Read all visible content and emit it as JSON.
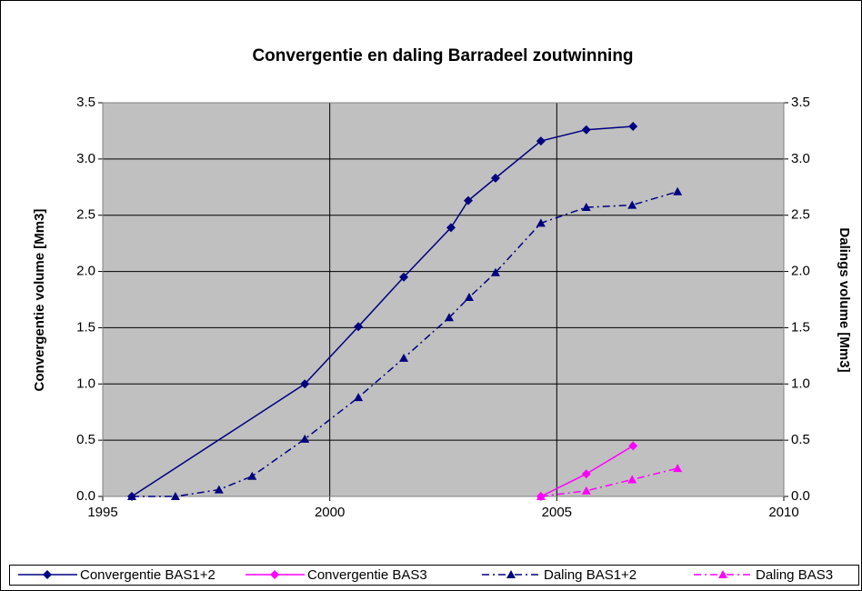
{
  "chart_data": {
    "type": "line",
    "title": "Convergentie en daling Barradeel zoutwinning",
    "ylabel": "Convergentie volume [Mm3]",
    "y2label": "Dalings volume [Mm3]",
    "xlim": [
      1995,
      2010
    ],
    "xticks": [
      1995,
      2000,
      2005,
      2010
    ],
    "ylim": [
      0,
      3.5
    ],
    "yticks": [
      {
        "value": 0,
        "label": "0.0"
      },
      0.5,
      {
        "value": 1,
        "label": "1.0"
      },
      1.5,
      {
        "value": 2,
        "label": "2.0"
      },
      2.5,
      {
        "value": 3,
        "label": "3.0"
      },
      3.5
    ],
    "y2lim": [
      0,
      3.5
    ],
    "y2ticks": [
      {
        "value": 0,
        "label": "0.0"
      },
      0.5,
      {
        "value": 1,
        "label": "1.0"
      },
      1.5,
      {
        "value": 2,
        "label": "2.0"
      },
      2.5,
      {
        "value": 3,
        "label": "3.0"
      },
      3.5
    ],
    "grid": true,
    "plot_background": "#c0c0c0",
    "legend": "bottom",
    "series": [
      {
        "name": "Convergentie BAS1+2",
        "color": "#000080",
        "marker": "diamond",
        "dash": "solid",
        "axis": "y",
        "x": [
          1995.64,
          1999.45,
          2000.63,
          2001.63,
          2002.67,
          2003.05,
          2003.65,
          2004.65,
          2005.65,
          2006.68
        ],
        "values": [
          0,
          1.0,
          1.51,
          1.95,
          2.39,
          2.63,
          2.83,
          3.16,
          3.26,
          3.29
        ]
      },
      {
        "name": "Convergentie BAS3",
        "color": "#ff00ff",
        "marker": "diamond",
        "dash": "solid",
        "axis": "y",
        "x": [
          2004.65,
          2005.65,
          2006.68
        ],
        "values": [
          0,
          0.2,
          0.45
        ]
      },
      {
        "name": "Daling BAS1+2",
        "color": "#000080",
        "marker": "triangle",
        "dash": "dashdot",
        "axis": "y2",
        "x": [
          1995.64,
          1996.6,
          1997.56,
          1998.29,
          1999.45,
          2000.63,
          2001.63,
          2002.63,
          2003.07,
          2003.65,
          2004.65,
          2005.65,
          2006.66,
          2007.66
        ],
        "values": [
          0,
          0,
          0.06,
          0.18,
          0.51,
          0.88,
          1.23,
          1.59,
          1.77,
          1.99,
          2.43,
          2.57,
          2.59,
          2.71
        ]
      },
      {
        "name": "Daling BAS3",
        "color": "#ff00ff",
        "marker": "triangle",
        "dash": "dashdot",
        "axis": "y2",
        "x": [
          2004.65,
          2005.65,
          2006.66,
          2007.66
        ],
        "values": [
          0,
          0.05,
          0.15,
          0.25
        ]
      }
    ]
  }
}
